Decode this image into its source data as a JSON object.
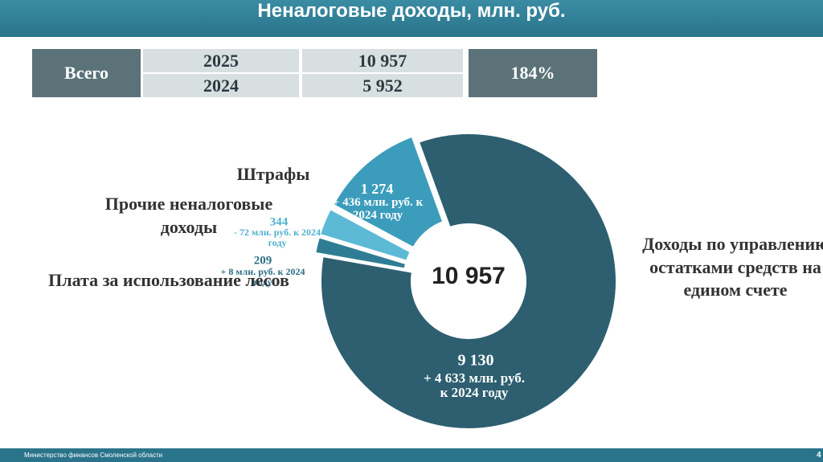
{
  "header": {
    "title": "Неналоговые доходы, млн. руб."
  },
  "summary": {
    "label": "Всего",
    "rows": [
      [
        "2025",
        "10 957"
      ],
      [
        "2024",
        "5 952"
      ]
    ],
    "ratio": "184%"
  },
  "chart_data": {
    "type": "donut",
    "center_label": "10 957",
    "categories": [
      "Доходы по управлению остатками средств на едином счете",
      "Плата за использование лесов",
      "Прочие неналоговые доходы",
      "Штрафы"
    ],
    "values": [
      9130,
      209,
      344,
      1274
    ],
    "value_labels": [
      "9 130",
      "209",
      "344",
      "1 274"
    ],
    "changes": [
      "+ 4 633 млн. руб. к 2024 году",
      "+ 8 млн. руб. к 2024 году",
      "- 72 млн. руб. к 2024 году",
      "+ 436 млн. руб. к 2024 году"
    ],
    "colors": [
      "#2d5f70",
      "#2f7d95",
      "#5cbad6",
      "#3b9dbb"
    ]
  },
  "footer": {
    "ministry": "Министерство финансов Смоленской области",
    "page": "4"
  }
}
